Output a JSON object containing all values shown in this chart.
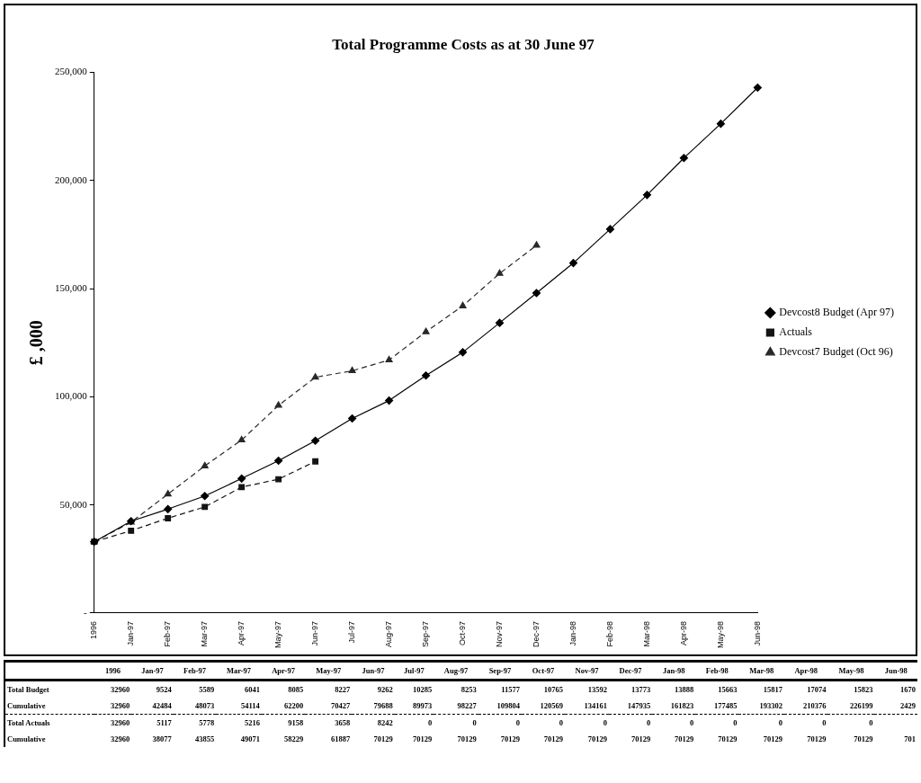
{
  "chart_data": [
    {
      "type": "line",
      "title": "Total Programme Costs as at 30 June 97",
      "ylabel": "£ ,000",
      "categories": [
        "1996",
        "Jan-97",
        "Feb-97",
        "Mar-97",
        "Apr-97",
        "May-97",
        "Jun-97",
        "Jul-97",
        "Aug-97",
        "Sep-97",
        "Oct-97",
        "Nov-97",
        "Dec-97",
        "Jan-98",
        "Feb-98",
        "Mar-98",
        "Apr-98",
        "May-98",
        "Jun-98"
      ],
      "series": [
        {
          "name": "Devcost8 Budget (Apr 97)",
          "color": "#000000",
          "marker": "diamond",
          "line_style": "solid",
          "values": [
            32960,
            42484,
            48073,
            54114,
            62200,
            70427,
            79688,
            89973,
            98227,
            109804,
            120569,
            134161,
            147935,
            161823,
            177485,
            193302,
            210376,
            226199,
            242900
          ]
        },
        {
          "name": "Actuals",
          "color": "#141414",
          "marker": "square",
          "line_style": "dashed",
          "values": [
            32960,
            38077,
            43855,
            49071,
            58229,
            61887,
            70129,
            null,
            null,
            null,
            null,
            null,
            null,
            null,
            null,
            null,
            null,
            null,
            null
          ]
        },
        {
          "name": "Devcost7 Budget (Oct 96)",
          "color": "#282828",
          "marker": "triangle",
          "line_style": "dashed",
          "values": [
            32960,
            42000,
            55000,
            68000,
            80000,
            96000,
            109000,
            112000,
            117000,
            130000,
            142000,
            157000,
            170000,
            null,
            null,
            null,
            null,
            null,
            null
          ]
        }
      ],
      "ylim": [
        0,
        250000
      ],
      "yticks": [
        {
          "value": 0,
          "label": "-"
        },
        {
          "value": 50000,
          "label": "50,000"
        },
        {
          "value": 100000,
          "label": "100,000"
        },
        {
          "value": 150000,
          "label": "150,000"
        },
        {
          "value": 200000,
          "label": "200,000"
        },
        {
          "value": 250000,
          "label": "250,000"
        }
      ],
      "grid": false,
      "legend": "right"
    },
    {
      "type": "other",
      "categories": [
        "1996",
        "Jan-97",
        "Feb-97",
        "Mar-97",
        "Apr-97",
        "May-97",
        "Jun-97",
        "Jul-97",
        "Aug-97",
        "Sep-97",
        "Oct-97",
        "Nov-97",
        "Dec-97",
        "Jan-98",
        "Feb-98",
        "Mar-98",
        "Apr-98",
        "May-98",
        "Jun-98"
      ],
      "y_categories": [
        "Total Budget",
        "Cumulative",
        "Total Actuals",
        "Cumulative"
      ],
      "cell_labels": [
        [
          "32960",
          "9524",
          "5589",
          "6041",
          "8085",
          "8227",
          "9262",
          "10285",
          "8253",
          "11577",
          "10765",
          "13592",
          "13773",
          "13888",
          "15663",
          "15817",
          "17074",
          "15823",
          "1670"
        ],
        [
          "32960",
          "42484",
          "48073",
          "54114",
          "62200",
          "70427",
          "79688",
          "89973",
          "98227",
          "109804",
          "120569",
          "134161",
          "147935",
          "161823",
          "177485",
          "193302",
          "210376",
          "226199",
          "2429"
        ],
        [
          "32960",
          "5117",
          "5778",
          "5216",
          "9158",
          "3658",
          "8242",
          "0",
          "0",
          "0",
          "0",
          "0",
          "0",
          "0",
          "0",
          "0",
          "0",
          "0",
          null
        ],
        [
          "32960",
          "38077",
          "43855",
          "49071",
          "58229",
          "61887",
          "70129",
          "70129",
          "70129",
          "70129",
          "70129",
          "70129",
          "70129",
          "70129",
          "70129",
          "70129",
          "70129",
          "70129",
          "701"
        ]
      ]
    }
  ]
}
